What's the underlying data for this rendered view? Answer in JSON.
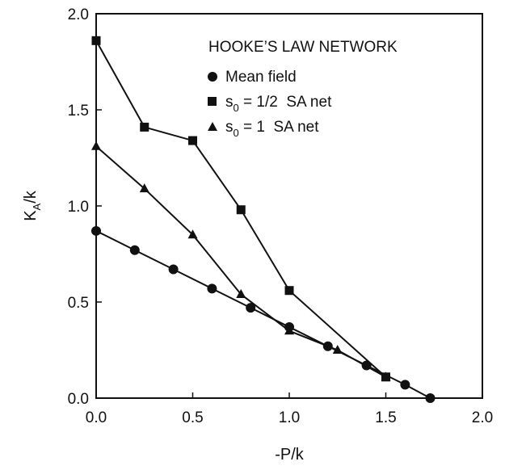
{
  "chart_data": {
    "type": "line",
    "xlabel": "-P/k",
    "ylabel": {
      "main": "K",
      "sub": "A",
      "rest": "/k"
    },
    "xlim": [
      0,
      2
    ],
    "ylim": [
      0,
      2
    ],
    "xticks": [
      "0.0",
      "0.5",
      "1.0",
      "1.5",
      "2.0"
    ],
    "yticks": [
      "0.0",
      "0.5",
      "1.0",
      "1.5",
      "2.0"
    ],
    "grid": false,
    "legend_position": "top-right",
    "legend_title": "HOOKE’S LAW NETWORK",
    "series": [
      {
        "name": "Mean field",
        "legend": {
          "pre": "Mean field",
          "sub": "",
          "post": ""
        },
        "marker": "circle",
        "x": [
          0.0,
          0.2,
          0.4,
          0.6,
          0.8,
          1.0,
          1.2,
          1.4,
          1.6,
          1.73
        ],
        "y": [
          0.87,
          0.77,
          0.67,
          0.57,
          0.47,
          0.37,
          0.27,
          0.17,
          0.07,
          0.0
        ]
      },
      {
        "name": "s0 = 1/2 SA net",
        "legend": {
          "pre": "s",
          "sub": "0",
          "post": " = 1/2  SA net"
        },
        "marker": "square",
        "x": [
          0.0,
          0.25,
          0.5,
          0.75,
          1.0,
          1.5
        ],
        "y": [
          1.86,
          1.41,
          1.34,
          0.98,
          0.56,
          0.11
        ]
      },
      {
        "name": "s0 = 1 SA net",
        "legend": {
          "pre": "s",
          "sub": "0",
          "post": " = 1  SA net"
        },
        "marker": "triangle",
        "x": [
          0.0,
          0.25,
          0.5,
          0.75,
          1.0,
          1.25,
          1.5
        ],
        "y": [
          1.31,
          1.09,
          0.85,
          0.54,
          0.35,
          0.25,
          0.11
        ]
      }
    ]
  }
}
